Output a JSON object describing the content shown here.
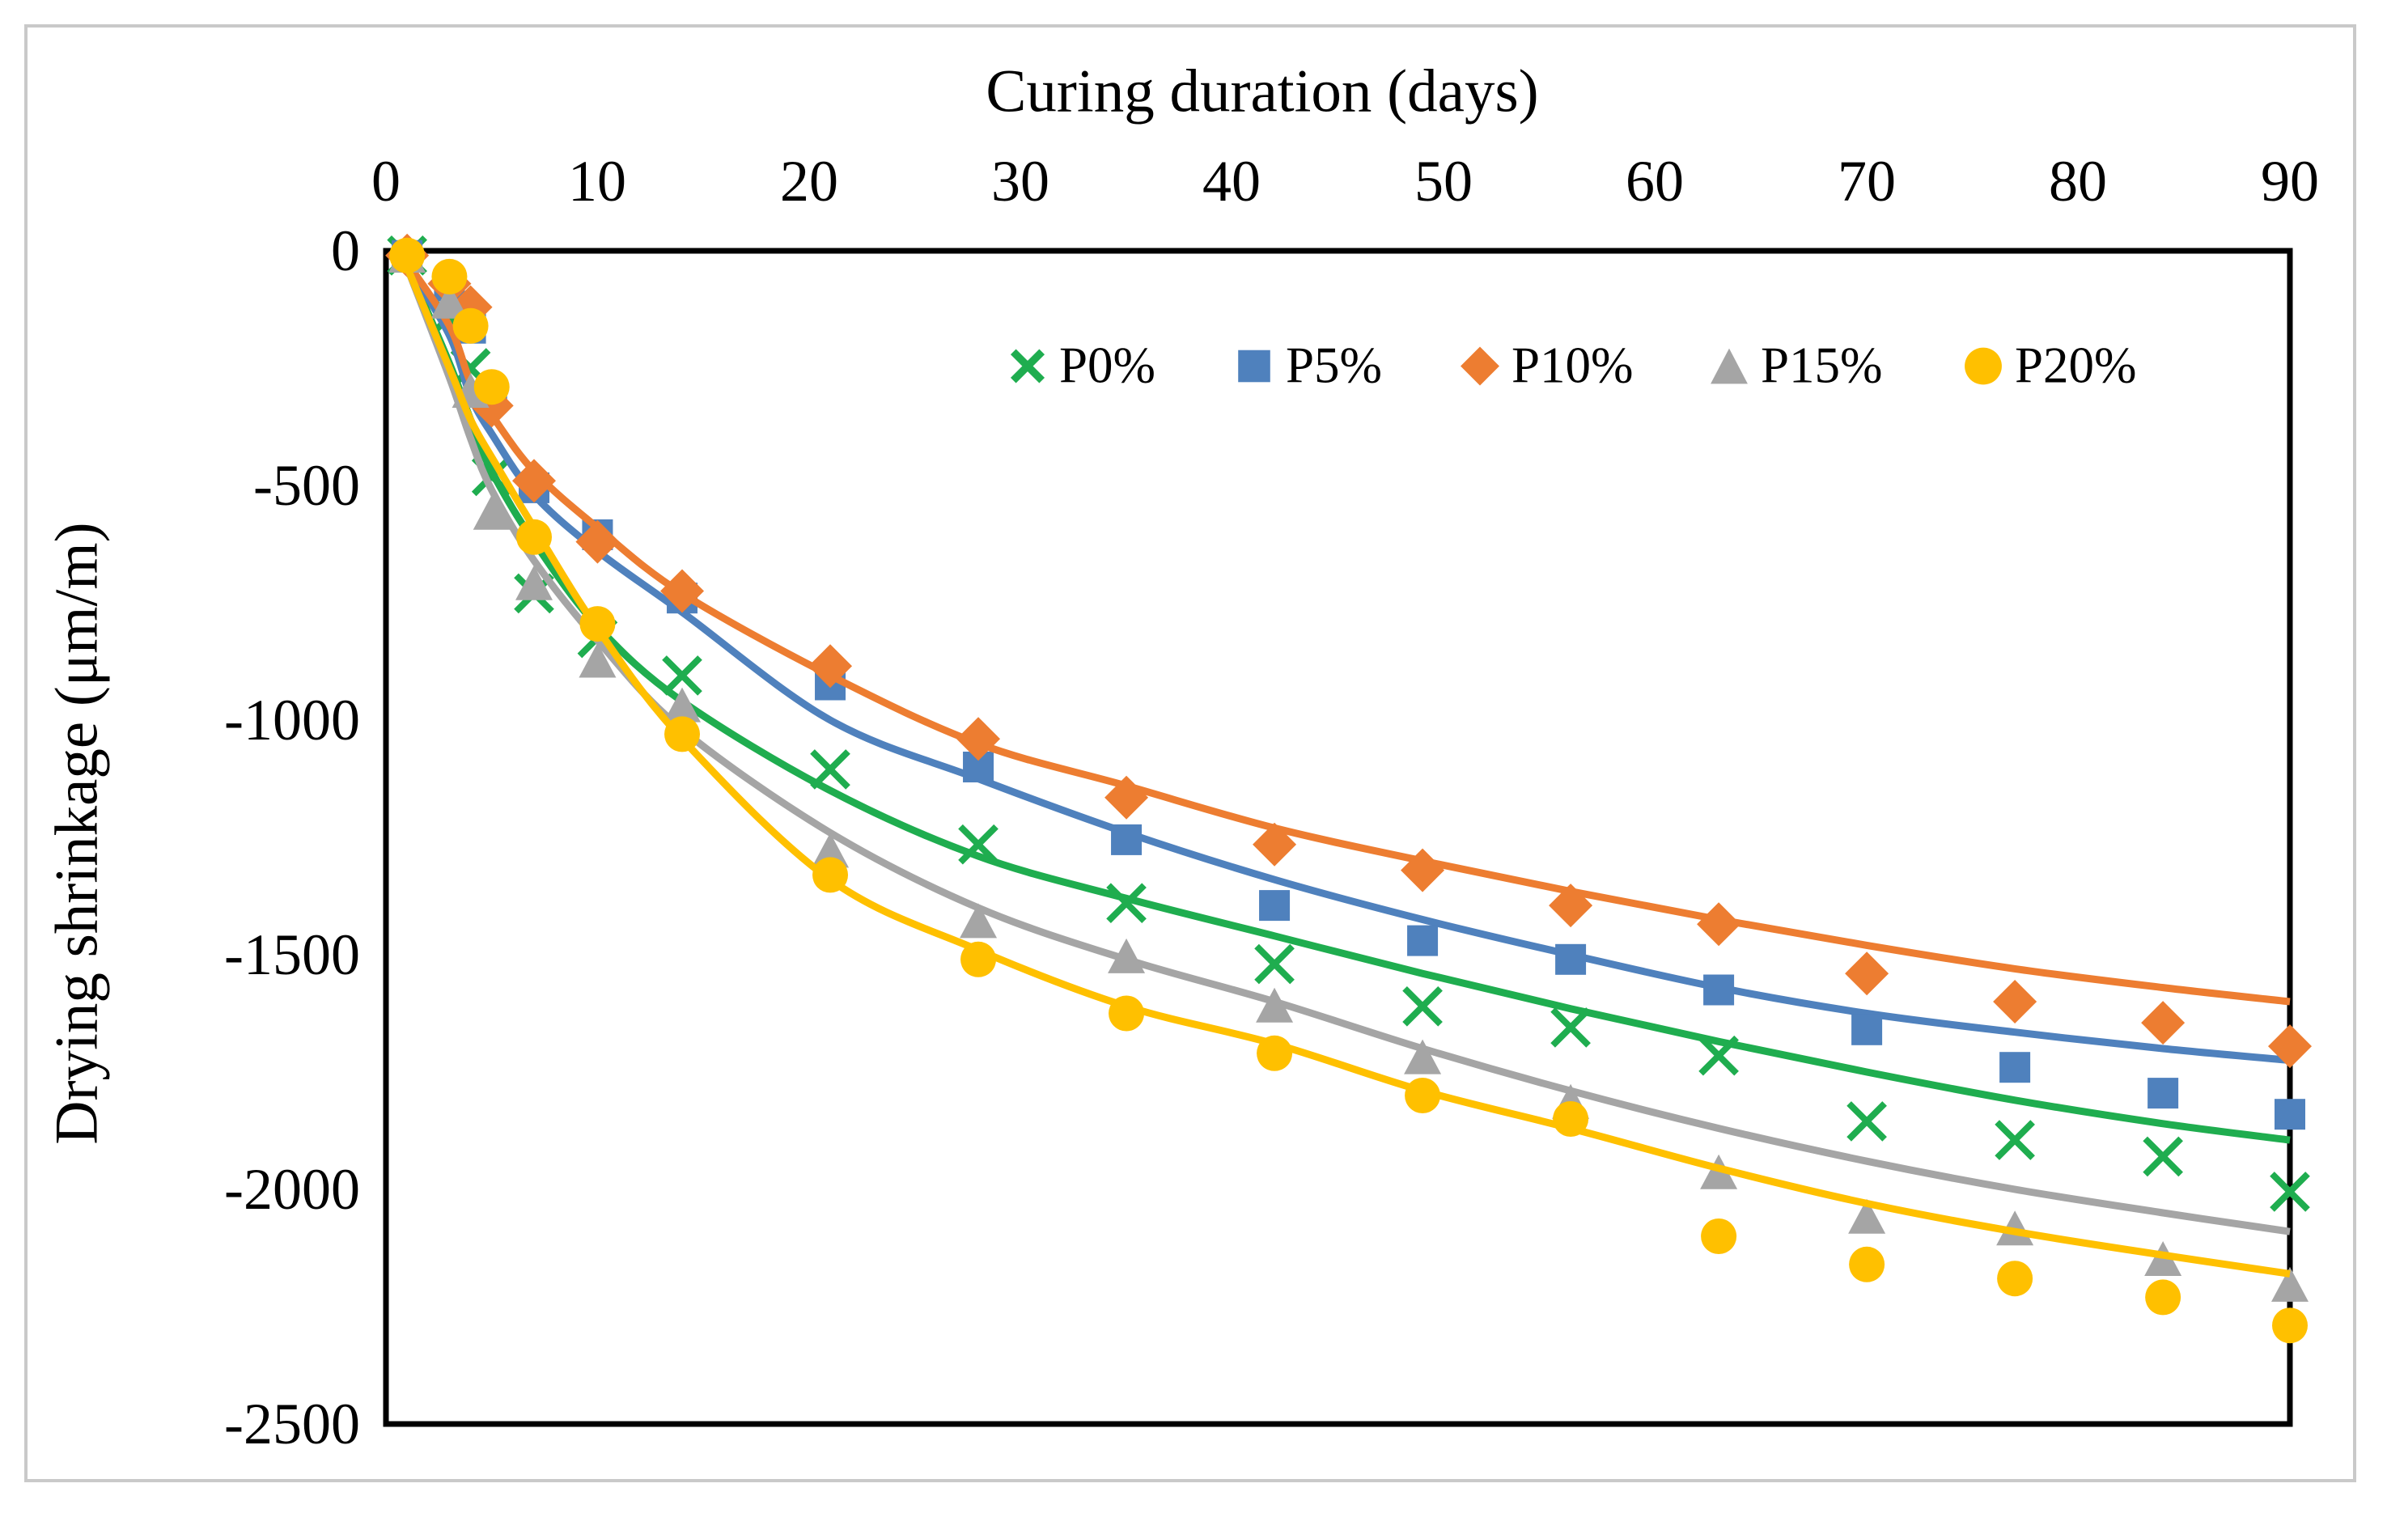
{
  "chart_data": {
    "type": "scatter",
    "title": "",
    "xlabel": "Curing duration (days)",
    "ylabel": "Drying shrinkage (μm/m)",
    "xlim": [
      0,
      90
    ],
    "ylim": [
      -2500,
      0
    ],
    "grid": false,
    "legend_position": "top-center-inside",
    "x_ticks": [
      0,
      10,
      20,
      30,
      40,
      50,
      60,
      70,
      80,
      90
    ],
    "x_tick_labels": [
      "0",
      "10",
      "20",
      "30",
      "40",
      "50",
      "60",
      "70",
      "80",
      "90"
    ],
    "y_ticks": [
      0,
      -500,
      -1000,
      -1500,
      -2000,
      -2500
    ],
    "y_tick_labels": [
      "0",
      "-500",
      "-1000",
      "-1500",
      "-2000",
      "-2500"
    ],
    "days": [
      1,
      3,
      4,
      5,
      7,
      10,
      14,
      21,
      28,
      35,
      42,
      49,
      56,
      63,
      70,
      77,
      84,
      90
    ],
    "series": [
      {
        "name": "P0%",
        "marker": "x",
        "color": "#1FAD4F",
        "values": [
          -10,
          -140,
          -250,
          -480,
          -730,
          -825,
          -905,
          -1105,
          -1265,
          -1390,
          -1520,
          -1610,
          -1655,
          -1715,
          -1855,
          -1895,
          -1930,
          -2005
        ],
        "trend": [
          -30,
          -240,
          -360,
          -470,
          -620,
          -800,
          -960,
          -1150,
          -1290,
          -1380,
          -1460,
          -1540,
          -1615,
          -1685,
          -1750,
          -1810,
          -1860,
          -1895
        ]
      },
      {
        "name": "P5%",
        "marker": "square",
        "color": "#4F81BD",
        "values": [
          -10,
          -75,
          -165,
          -310,
          -505,
          -605,
          -740,
          -925,
          -1100,
          -1255,
          -1395,
          -1470,
          -1510,
          -1575,
          -1660,
          -1740,
          -1795,
          -1840
        ],
        "trend": [
          -30,
          -180,
          -310,
          -390,
          -520,
          -640,
          -770,
          -1000,
          -1125,
          -1240,
          -1340,
          -1425,
          -1500,
          -1570,
          -1625,
          -1665,
          -1700,
          -1725
        ]
      },
      {
        "name": "P10%",
        "marker": "diamond",
        "color": "#ED7D31",
        "values": [
          -10,
          -70,
          -120,
          -330,
          -490,
          -620,
          -725,
          -885,
          -1040,
          -1165,
          -1265,
          -1320,
          -1395,
          -1435,
          -1540,
          -1600,
          -1645,
          -1695
        ],
        "trend": [
          -25,
          -160,
          -280,
          -350,
          -470,
          -590,
          -730,
          -905,
          -1050,
          -1140,
          -1230,
          -1300,
          -1365,
          -1425,
          -1480,
          -1530,
          -1570,
          -1600
        ]
      },
      {
        "name": "P15%",
        "marker": "triangle",
        "color": "#A5A5A5",
        "values": [
          -12,
          -110,
          -300,
          -560,
          -710,
          -875,
          -970,
          -1280,
          -1430,
          -1505,
          -1610,
          -1720,
          -1815,
          -1965,
          -2060,
          -2085,
          -2150,
          -2205
        ],
        "trend": [
          -35,
          -270,
          -400,
          -510,
          -660,
          -830,
          -1020,
          -1240,
          -1400,
          -1510,
          -1600,
          -1700,
          -1790,
          -1870,
          -1940,
          -2000,
          -2050,
          -2090
        ]
      },
      {
        "name": "P20%",
        "marker": "circle",
        "color": "#FFC000",
        "values": [
          -10,
          -55,
          -160,
          -290,
          -610,
          -795,
          -1030,
          -1330,
          -1510,
          -1625,
          -1710,
          -1800,
          -1850,
          -2100,
          -2160,
          -2190,
          -2230,
          -2290
        ],
        "trend": [
          -35,
          -250,
          -360,
          -440,
          -590,
          -805,
          -1040,
          -1340,
          -1490,
          -1610,
          -1690,
          -1790,
          -1870,
          -1955,
          -2030,
          -2090,
          -2140,
          -2180
        ]
      }
    ]
  }
}
